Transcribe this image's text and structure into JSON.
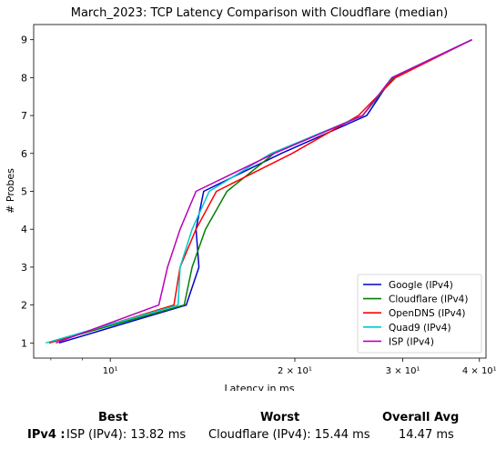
{
  "chart_data": {
    "type": "line",
    "title": "March_2023: TCP Latency Comparison with Cloudflare (median)",
    "xlabel": "Latency in ms",
    "ylabel": "# Probes",
    "x_scale": "log",
    "xlim": [
      7.5,
      41
    ],
    "ylim": [
      0.6,
      9.4
    ],
    "x_ticks": [
      {
        "value": 10,
        "label": "10¹"
      },
      {
        "value": 20,
        "label": "2 × 10¹"
      },
      {
        "value": 30,
        "label": "3 × 10¹"
      },
      {
        "value": 40,
        "label": "4 × 10¹"
      }
    ],
    "y_ticks": [
      1,
      2,
      3,
      4,
      5,
      6,
      7,
      8,
      9
    ],
    "grid": false,
    "legend_position": "lower-right",
    "series": [
      {
        "name": "Google (IPv4)",
        "color": "#0000cc",
        "points": [
          [
            8.25,
            1
          ],
          [
            13.3,
            2
          ],
          [
            13.95,
            3
          ],
          [
            13.8,
            4
          ],
          [
            14.2,
            5
          ],
          [
            19.0,
            6
          ],
          [
            26.2,
            7
          ],
          [
            28.8,
            8
          ],
          [
            38.9,
            9
          ]
        ]
      },
      {
        "name": "Cloudflare (IPv4)",
        "color": "#008000",
        "points": [
          [
            7.95,
            1
          ],
          [
            13.2,
            2
          ],
          [
            13.6,
            3
          ],
          [
            14.3,
            4
          ],
          [
            15.5,
            5
          ],
          [
            18.5,
            6
          ],
          [
            25.8,
            7
          ],
          [
            29.0,
            8
          ],
          [
            38.9,
            9
          ]
        ]
      },
      {
        "name": "OpenDNS (IPv4)",
        "color": "#ff0000",
        "points": [
          [
            7.95,
            1
          ],
          [
            12.7,
            2
          ],
          [
            13.0,
            3
          ],
          [
            13.8,
            4
          ],
          [
            14.9,
            5
          ],
          [
            19.8,
            6
          ],
          [
            25.4,
            7
          ],
          [
            29.2,
            8
          ],
          [
            38.9,
            9
          ]
        ]
      },
      {
        "name": "Quad9 (IPv4)",
        "color": "#00c8c8",
        "points": [
          [
            7.85,
            1
          ],
          [
            12.9,
            2
          ],
          [
            13.0,
            3
          ],
          [
            13.6,
            4
          ],
          [
            14.5,
            5
          ],
          [
            18.3,
            6
          ],
          [
            25.8,
            7
          ],
          [
            28.8,
            8
          ],
          [
            38.9,
            9
          ]
        ]
      },
      {
        "name": "ISP (IPv4)",
        "color": "#bb00bb",
        "points": [
          [
            8.15,
            1
          ],
          [
            12.0,
            2
          ],
          [
            12.4,
            3
          ],
          [
            13.0,
            4
          ],
          [
            13.8,
            5
          ],
          [
            18.5,
            6
          ],
          [
            25.8,
            7
          ],
          [
            28.8,
            8
          ],
          [
            38.9,
            9
          ]
        ]
      }
    ]
  },
  "summary": {
    "best_header": "Best",
    "worst_header": "Worst",
    "avg_header": "Overall Avg",
    "row_label": "IPv4 :",
    "best_value": "ISP (IPv4): 13.82 ms",
    "worst_value": "Cloudflare (IPv4): 15.44 ms",
    "avg_value": "14.47 ms"
  }
}
